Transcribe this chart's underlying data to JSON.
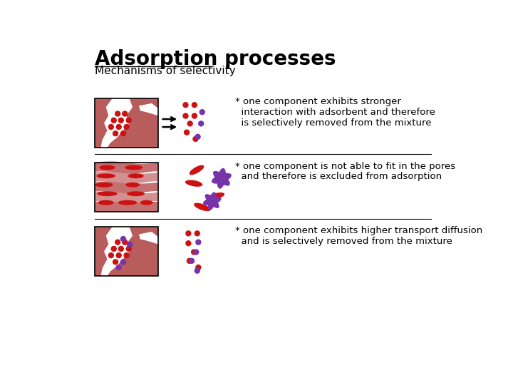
{
  "title": "Adsorption processes",
  "subtitle": "Mechanisms of selectivity",
  "bg_color": "#ffffff",
  "title_fontsize": 20,
  "subtitle_fontsize": 11,
  "text_fontsize": 9.5,
  "section1_text": "* one component exhibits stronger\n  interaction with adsorbent and therefore\n  is selectively removed from the mixture",
  "section2_text": "* one component is not able to fit in the pores\n  and therefore is excluded from adsorption",
  "section3_text": "* one component exhibits higher transport diffusion\n  and is selectively removed from the mixture",
  "red_blob": "#b85c5c",
  "dark_red": "#cc1111",
  "purple_dot": "#7733aa",
  "red_dot": "#cc1111",
  "layer_dark": "#c47070",
  "layer_light": "#d49090"
}
